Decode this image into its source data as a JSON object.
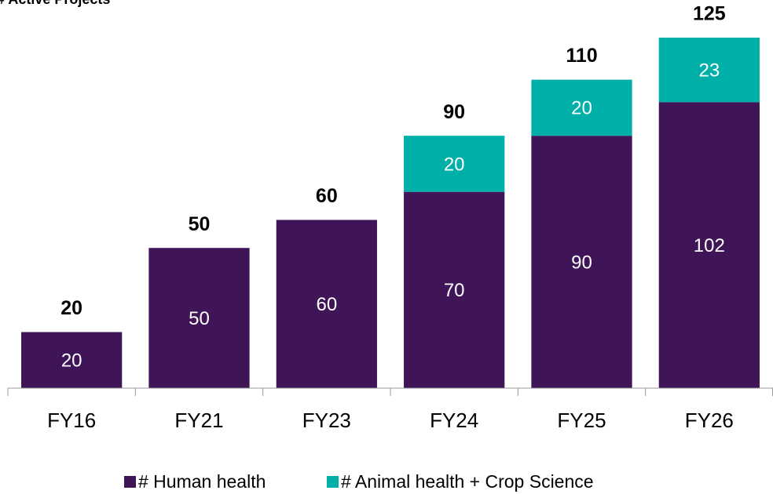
{
  "chart_data": {
    "type": "stacked_bar",
    "title": "# Active Projects",
    "categories": [
      "FY16",
      "FY21",
      "FY23",
      "FY24",
      "FY25",
      "FY26"
    ],
    "series": [
      {
        "name": "# Human health",
        "color": "#3f1558",
        "values": [
          20,
          50,
          60,
          70,
          90,
          102
        ]
      },
      {
        "name": "# Animal health + Crop Science",
        "color": "#00b0a8",
        "values": [
          null,
          null,
          null,
          20,
          20,
          23
        ]
      }
    ],
    "totals": [
      20,
      50,
      60,
      90,
      110,
      125
    ],
    "legend": "bottom"
  }
}
